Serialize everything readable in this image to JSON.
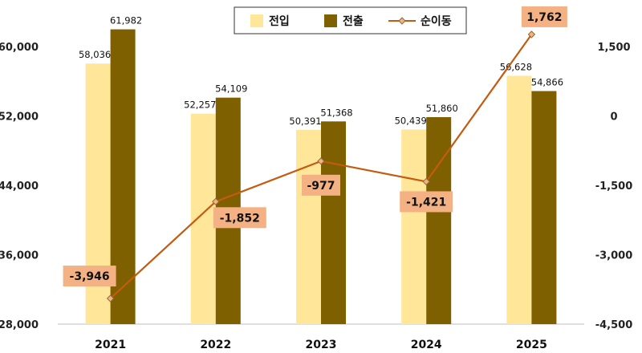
{
  "chart_data": {
    "type": "bar",
    "categories": [
      "2021",
      "2022",
      "2023",
      "2024",
      "2025"
    ],
    "series": [
      {
        "name": "전입",
        "type": "bar",
        "axis": "left",
        "color": "#FFE699",
        "values": [
          58036,
          52257,
          50391,
          50439,
          56628
        ],
        "labels": [
          "58,036",
          "52,257",
          "50,391",
          "50,439",
          "56,628"
        ]
      },
      {
        "name": "전출",
        "type": "bar",
        "axis": "left",
        "color": "#7F6000",
        "values": [
          61982,
          54109,
          51368,
          51860,
          54866
        ],
        "labels": [
          "61,982",
          "54,109",
          "51,368",
          "51,860",
          "54,866"
        ]
      },
      {
        "name": "순이동",
        "type": "line",
        "axis": "right",
        "color": "#C55A11",
        "marker": "diamond",
        "values": [
          -3946,
          -1852,
          -977,
          -1421,
          1762
        ],
        "labels": [
          "-3,946",
          "-1,852",
          "-977",
          "-1,421",
          "1,762"
        ]
      }
    ],
    "left_axis": {
      "ylim": [
        28000,
        60000
      ],
      "ticks": [
        "28,000",
        "36,000",
        "44,000",
        "52,000",
        "60,000"
      ]
    },
    "right_axis": {
      "ylim": [
        -4500,
        1500
      ],
      "ticks": [
        "-4,500",
        "-3,000",
        "-1,500",
        "0",
        "1,500"
      ]
    },
    "label_box_color": "#F4B183",
    "legend_position": "top-center",
    "grid": false
  }
}
